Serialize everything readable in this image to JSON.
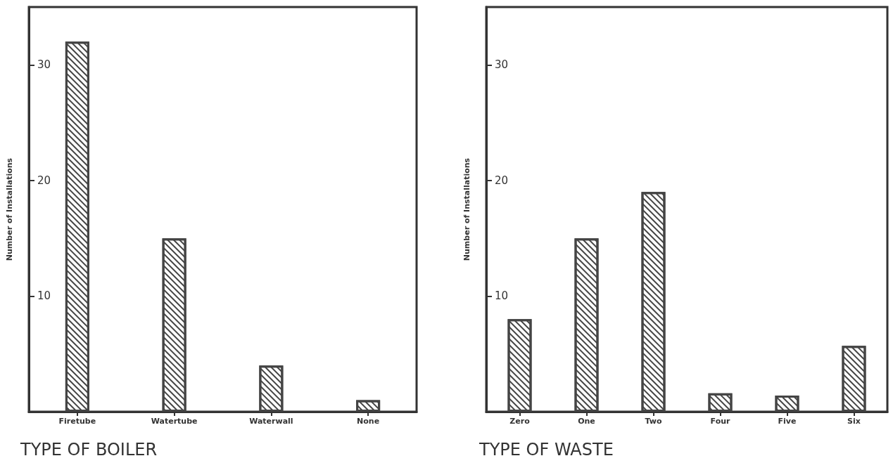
{
  "chart_data": [
    {
      "type": "bar",
      "title": "TYPE OF BOILER",
      "ylabel": "Number of Installations",
      "categories": [
        "Firetube",
        "Watertube",
        "Waterwall",
        "None"
      ],
      "values": [
        32,
        15,
        4,
        1
      ],
      "color": "#444444",
      "ylim": [
        0,
        35
      ],
      "yticks": [
        10,
        20,
        30
      ],
      "grid": false
    },
    {
      "type": "bar",
      "title": "TYPE OF WASTE",
      "ylabel": "Number of Installations",
      "categories": [
        "Zero",
        "One",
        "Two",
        "Four",
        "Five",
        "Six"
      ],
      "values": [
        8,
        15,
        19,
        1.6,
        1.4,
        5.7
      ],
      "color": "#444444",
      "ylim": [
        0,
        35
      ],
      "yticks": [
        10,
        20,
        30
      ],
      "grid": false
    }
  ]
}
